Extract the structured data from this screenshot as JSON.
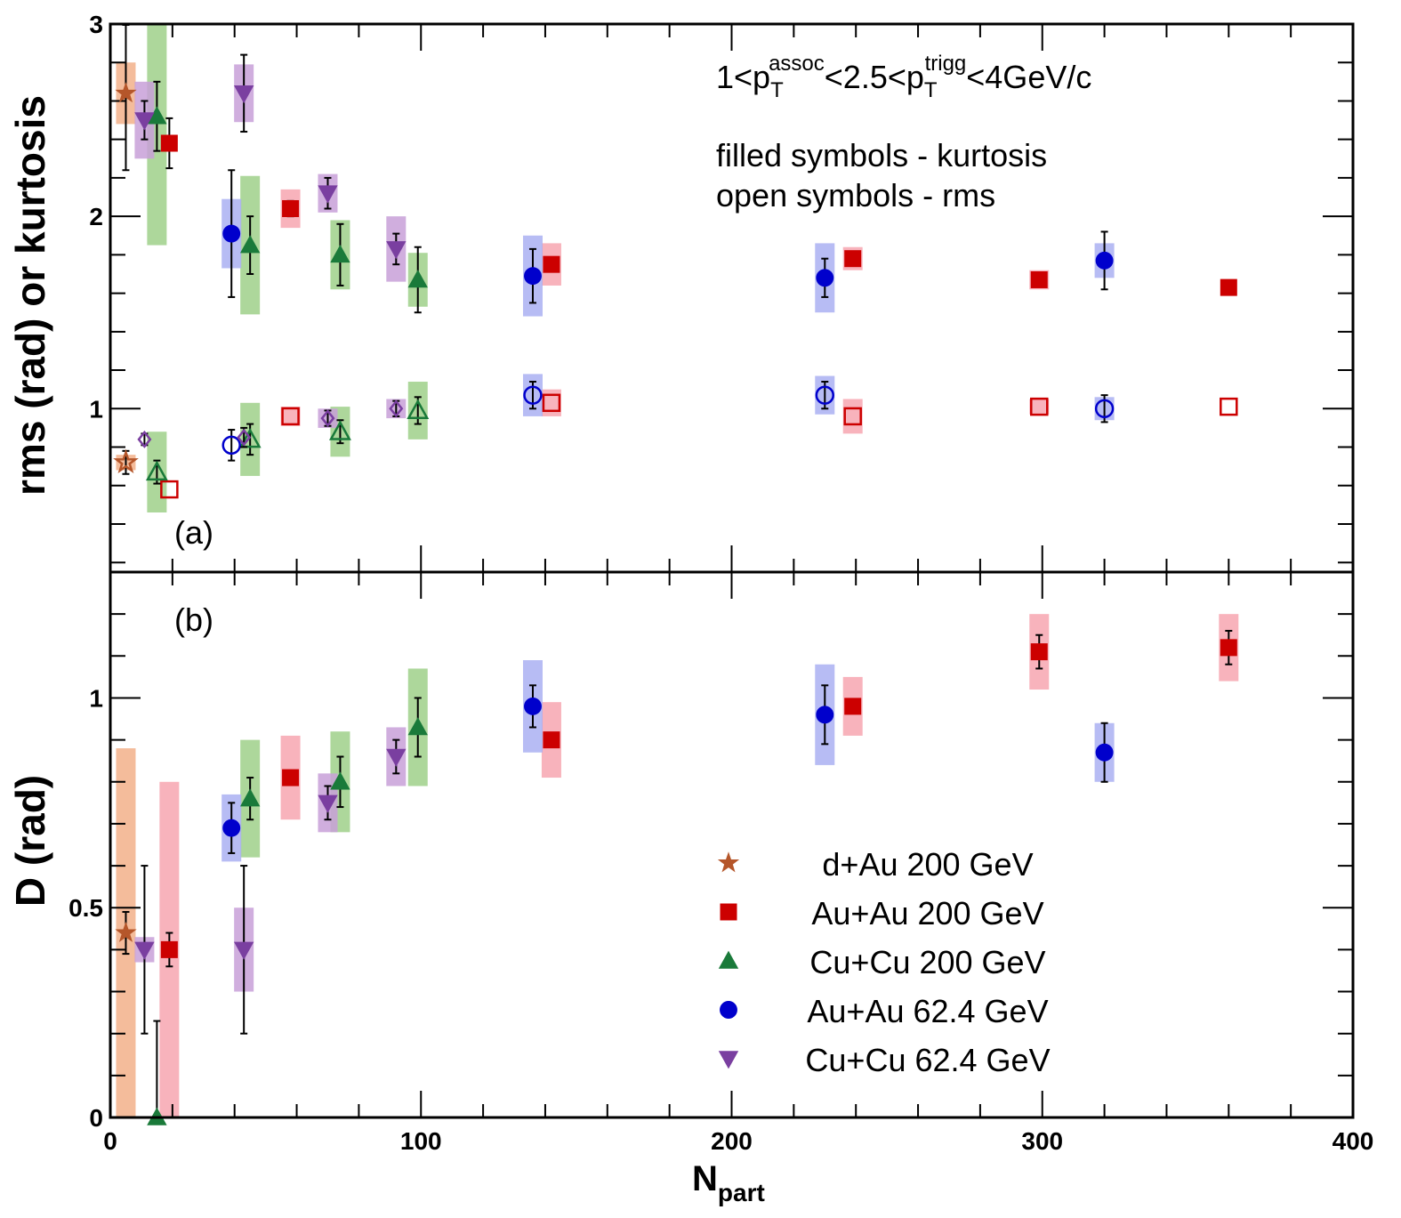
{
  "chart_data": [
    {
      "panel": "(a)",
      "type": "scatter",
      "ylabel": "rms (rad) or kurtosis",
      "xlabel": "N",
      "xlabel_sub": "part",
      "xlim": [
        0,
        400
      ],
      "ylim": [
        0.15,
        3
      ],
      "y_ticks": [
        1,
        2,
        3
      ],
      "x_ticks": [
        0,
        100,
        200,
        300,
        400
      ],
      "annotation": {
        "lead": "1<p",
        "sub1": "T",
        "sup1": "assoc",
        "mid": "<2.5<p",
        "sub2": "T",
        "sup2": "trigg",
        "tail": "<4GeV/c"
      },
      "notes": [
        "filled symbols - kurtosis",
        "open symbols - rms"
      ],
      "series": [
        {
          "name": "d+Au 200 GeV",
          "marker": "star",
          "color": "#b5562a",
          "box": "#f2b08a",
          "kurtosis": [
            {
              "x": 5,
              "y": 2.64,
              "err": 0.4,
              "sys": 0.16
            }
          ],
          "rms": [
            {
              "x": 5,
              "y": 0.72,
              "err": 0.06,
              "sys": 0.04
            }
          ]
        },
        {
          "name": "Au+Au 200 GeV",
          "marker": "square",
          "color": "#cc0000",
          "box": "#f7a6b0",
          "kurtosis": [
            {
              "x": 19,
              "y": 2.38,
              "err": 0.13,
              "sys": 0.0
            },
            {
              "x": 58,
              "y": 2.04,
              "err": 0.04,
              "sys": 0.1
            },
            {
              "x": 142,
              "y": 1.75,
              "err": 0.02,
              "sys": 0.11
            },
            {
              "x": 239,
              "y": 1.78,
              "err": 0.02,
              "sys": 0.06
            },
            {
              "x": 299,
              "y": 1.67,
              "err": 0.02,
              "sys": 0.05
            },
            {
              "x": 360,
              "y": 1.63,
              "err": 0.03,
              "sys": 0.0
            }
          ],
          "rms": [
            {
              "x": 19,
              "y": 0.58,
              "err": 0.0,
              "sys": 0.0
            },
            {
              "x": 58,
              "y": 0.96,
              "err": 0.0,
              "sys": 0.05
            },
            {
              "x": 142,
              "y": 1.03,
              "err": 0.0,
              "sys": 0.07
            },
            {
              "x": 239,
              "y": 0.96,
              "err": 0.0,
              "sys": 0.09
            },
            {
              "x": 299,
              "y": 1.01,
              "err": 0.0,
              "sys": 0.04
            },
            {
              "x": 360,
              "y": 1.01,
              "err": 0.0,
              "sys": 0.0
            }
          ]
        },
        {
          "name": "Cu+Cu 200 GeV",
          "marker": "triangle",
          "color": "#1a7a3a",
          "box": "#9fd08a",
          "kurtosis": [
            {
              "x": 15,
              "y": 2.52,
              "err": 0.18,
              "sys": 0.67
            },
            {
              "x": 45,
              "y": 1.85,
              "err": 0.15,
              "sys": 0.36
            },
            {
              "x": 74,
              "y": 1.8,
              "err": 0.16,
              "sys": 0.18
            },
            {
              "x": 99,
              "y": 1.67,
              "err": 0.17,
              "sys": 0.14
            }
          ],
          "rms": [
            {
              "x": 15,
              "y": 0.67,
              "err": 0.06,
              "sys": 0.21
            },
            {
              "x": 45,
              "y": 0.84,
              "err": 0.08,
              "sys": 0.19
            },
            {
              "x": 74,
              "y": 0.88,
              "err": 0.06,
              "sys": 0.13
            },
            {
              "x": 99,
              "y": 0.99,
              "err": 0.07,
              "sys": 0.15
            }
          ]
        },
        {
          "name": "Au+Au 62.4 GeV",
          "marker": "circle",
          "color": "#0000cc",
          "box": "#aab0f2",
          "kurtosis": [
            {
              "x": 39,
              "y": 1.91,
              "err": 0.33,
              "sys": 0.18
            },
            {
              "x": 136,
              "y": 1.69,
              "err": 0.14,
              "sys": 0.21
            },
            {
              "x": 230,
              "y": 1.68,
              "err": 0.1,
              "sys": 0.18
            },
            {
              "x": 320,
              "y": 1.77,
              "err": 0.15,
              "sys": 0.09
            }
          ],
          "rms": [
            {
              "x": 39,
              "y": 0.81,
              "err": 0.08,
              "sys": 0.0
            },
            {
              "x": 136,
              "y": 1.07,
              "err": 0.07,
              "sys": 0.11
            },
            {
              "x": 230,
              "y": 1.07,
              "err": 0.07,
              "sys": 0.1
            },
            {
              "x": 320,
              "y": 1.0,
              "err": 0.07,
              "sys": 0.06
            }
          ]
        },
        {
          "name": "Cu+Cu 62.4 GeV",
          "marker": "triangle-down",
          "color": "#7a3fa0",
          "box": "#c8a0d8",
          "kurtosis": [
            {
              "x": 11,
              "y": 2.5,
              "err": 0.1,
              "sys": 0.2
            },
            {
              "x": 43,
              "y": 2.64,
              "err": 0.2,
              "sys": 0.15
            },
            {
              "x": 70,
              "y": 2.12,
              "err": 0.08,
              "sys": 0.1
            },
            {
              "x": 92,
              "y": 1.83,
              "err": 0.08,
              "sys": 0.17
            }
          ],
          "rms": [
            {
              "x": 11,
              "y": 0.84,
              "err": 0.03,
              "sys": 0.0
            },
            {
              "x": 43,
              "y": 0.85,
              "err": 0.05,
              "sys": 0.0
            },
            {
              "x": 70,
              "y": 0.95,
              "err": 0.04,
              "sys": 0.05
            },
            {
              "x": 92,
              "y": 1.0,
              "err": 0.04,
              "sys": 0.05
            }
          ]
        }
      ]
    },
    {
      "panel": "(b)",
      "type": "scatter",
      "ylabel": "D  (rad)",
      "xlabel": "N",
      "xlabel_sub": "part",
      "xlim": [
        0,
        400
      ],
      "ylim": [
        0,
        1.3
      ],
      "y_ticks": [
        0,
        0.5,
        1
      ],
      "y_tick_labels": [
        "0",
        "0.5",
        "1"
      ],
      "x_ticks": [
        0,
        100,
        200,
        300,
        400
      ],
      "series": [
        {
          "name": "d+Au 200 GeV",
          "marker": "star",
          "color": "#b5562a",
          "box": "#f2b08a",
          "points": [
            {
              "x": 5,
              "y": 0.44,
              "err": 0.05,
              "sys": 0.44
            }
          ]
        },
        {
          "name": "Au+Au 200 GeV",
          "marker": "square",
          "color": "#cc0000",
          "box": "#f7a6b0",
          "points": [
            {
              "x": 19,
              "y": 0.4,
              "err": 0.04,
              "sys": 0.4
            },
            {
              "x": 58,
              "y": 0.81,
              "err": 0.0,
              "sys": 0.1
            },
            {
              "x": 142,
              "y": 0.9,
              "err": 0.01,
              "sys": 0.09
            },
            {
              "x": 239,
              "y": 0.98,
              "err": 0.01,
              "sys": 0.07
            },
            {
              "x": 299,
              "y": 1.11,
              "err": 0.04,
              "sys": 0.09
            },
            {
              "x": 360,
              "y": 1.12,
              "err": 0.04,
              "sys": 0.08
            }
          ]
        },
        {
          "name": "Cu+Cu 200 GeV",
          "marker": "triangle",
          "color": "#1a7a3a",
          "box": "#9fd08a",
          "points": [
            {
              "x": 15,
              "y": 0.0,
              "err": 0.23,
              "sys": 0.0
            },
            {
              "x": 45,
              "y": 0.76,
              "err": 0.05,
              "sys": 0.14
            },
            {
              "x": 74,
              "y": 0.8,
              "err": 0.06,
              "sys": 0.12
            },
            {
              "x": 99,
              "y": 0.93,
              "err": 0.07,
              "sys": 0.14
            }
          ]
        },
        {
          "name": "Au+Au 62.4 GeV",
          "marker": "circle",
          "color": "#0000cc",
          "box": "#aab0f2",
          "points": [
            {
              "x": 39,
              "y": 0.69,
              "err": 0.06,
              "sys": 0.08
            },
            {
              "x": 136,
              "y": 0.98,
              "err": 0.05,
              "sys": 0.11
            },
            {
              "x": 230,
              "y": 0.96,
              "err": 0.07,
              "sys": 0.12
            },
            {
              "x": 320,
              "y": 0.87,
              "err": 0.07,
              "sys": 0.07
            }
          ]
        },
        {
          "name": "Cu+Cu 62.4 GeV",
          "marker": "triangle-down",
          "color": "#7a3fa0",
          "box": "#c8a0d8",
          "points": [
            {
              "x": 11,
              "y": 0.4,
              "err": 0.2,
              "sys": 0.03
            },
            {
              "x": 43,
              "y": 0.4,
              "err": 0.2,
              "sys": 0.1
            },
            {
              "x": 70,
              "y": 0.75,
              "err": 0.04,
              "sys": 0.07
            },
            {
              "x": 92,
              "y": 0.86,
              "err": 0.04,
              "sys": 0.07
            }
          ]
        }
      ]
    }
  ],
  "legend": [
    {
      "label": "d+Au 200 GeV",
      "marker": "star",
      "color": "#b5562a"
    },
    {
      "label": "Au+Au 200 GeV",
      "marker": "square",
      "color": "#cc0000"
    },
    {
      "label": "Cu+Cu 200 GeV",
      "marker": "triangle",
      "color": "#1a7a3a"
    },
    {
      "label": "Au+Au 62.4 GeV",
      "marker": "circle",
      "color": "#0000cc"
    },
    {
      "label": "Cu+Cu 62.4 GeV",
      "marker": "triangle-down",
      "color": "#7a3fa0"
    }
  ]
}
